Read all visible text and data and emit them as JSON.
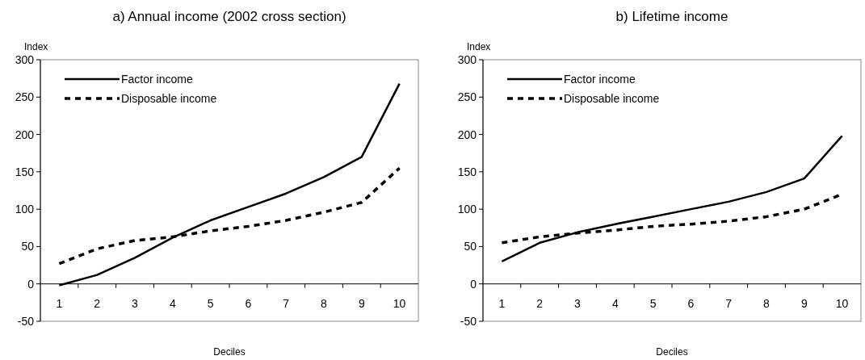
{
  "chart_data": [
    {
      "type": "line",
      "title": "a) Annual income (2002 cross section)",
      "xlabel": "Deciles",
      "ylabel": "Index",
      "categories": [
        "1",
        "2",
        "3",
        "4",
        "5",
        "6",
        "7",
        "8",
        "9",
        "10"
      ],
      "series": [
        {
          "name": "Factor income",
          "color": "#000000",
          "line_style": "solid",
          "values": [
            -2,
            12,
            35,
            62,
            85,
            103,
            121,
            143,
            170,
            268
          ]
        },
        {
          "name": "Disposable income",
          "color": "#000000",
          "line_style": "dashed",
          "values": [
            27,
            47,
            58,
            63,
            71,
            77,
            85,
            96,
            109,
            155
          ]
        }
      ],
      "ylim": [
        -50,
        300
      ],
      "yticks": [
        -50,
        0,
        50,
        100,
        150,
        200,
        250,
        300
      ],
      "grid": false,
      "legend": "top left",
      "marker": "none"
    },
    {
      "type": "line",
      "title": "b) Lifetime income",
      "xlabel": "Deciles",
      "ylabel": "Index",
      "categories": [
        "1",
        "2",
        "3",
        "4",
        "5",
        "6",
        "7",
        "8",
        "9",
        "10"
      ],
      "series": [
        {
          "name": "Factor income",
          "color": "#000000",
          "line_style": "solid",
          "values": [
            30,
            55,
            69,
            80,
            90,
            100,
            110,
            123,
            141,
            198
          ]
        },
        {
          "name": "Disposable income",
          "color": "#000000",
          "line_style": "dashed",
          "values": [
            55,
            63,
            68,
            72,
            77,
            80,
            84,
            90,
            100,
            120
          ]
        }
      ],
      "ylim": [
        -50,
        300
      ],
      "yticks": [
        -50,
        0,
        50,
        100,
        150,
        200,
        250,
        300
      ],
      "grid": false,
      "legend": "top left",
      "marker": "none"
    }
  ]
}
